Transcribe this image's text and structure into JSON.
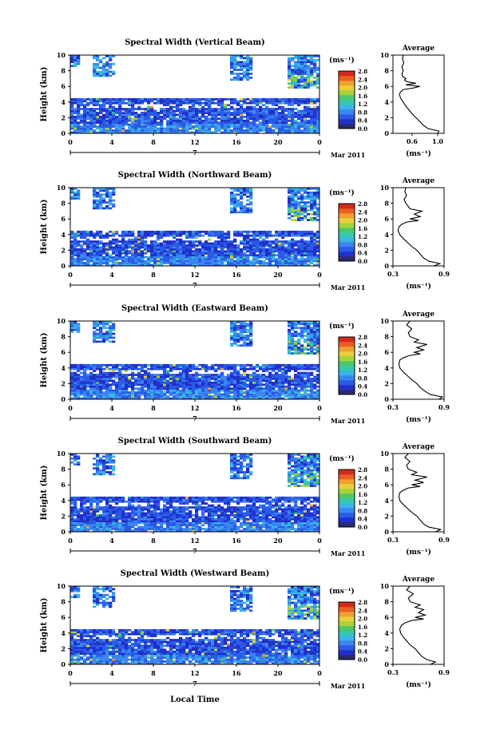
{
  "colorbar": {
    "unit": "(ms⁻¹)",
    "ticks": [
      "0.0",
      "0.4",
      "0.8",
      "1.2",
      "1.6",
      "2.0",
      "2.4",
      "2.8"
    ],
    "colors": [
      "#2a2a6e",
      "#2030c8",
      "#2a5ae6",
      "#3a86f0",
      "#3ab4e6",
      "#35c8b0",
      "#4cc86a",
      "#a6d23a",
      "#e8d03a",
      "#f0a030",
      "#ea6020",
      "#d42a1a"
    ]
  },
  "x_axis": {
    "ticks": [
      "0",
      "4",
      "8",
      "12",
      "16",
      "20",
      "0"
    ],
    "day": "7",
    "month_label": "Mar 2011",
    "xlabel": "Local Time"
  },
  "y_axis": {
    "label": "Height (km)",
    "ticks": [
      "0",
      "2",
      "4",
      "6",
      "8",
      "10"
    ]
  },
  "avg_title": "Average",
  "avg_unit": "(ms⁻¹)",
  "panels": [
    {
      "title": "Spectral Width (Vertical Beam)",
      "avg_xticks": [
        "0.6",
        "1.0"
      ],
      "avg_xlim": [
        0.3,
        1.1
      ],
      "avg_profile": {
        "height": [
          0,
          0.3,
          0.6,
          1,
          1.5,
          2,
          2.5,
          3,
          3.5,
          4,
          4.5,
          5,
          5.3,
          5.6,
          5.8,
          6,
          6.2,
          6.4,
          6.6,
          6.8,
          7,
          7.3,
          7.6,
          8,
          8.5,
          9,
          9.5,
          10
        ],
        "value": [
          1.0,
          1.02,
          0.85,
          0.78,
          0.72,
          0.66,
          0.6,
          0.55,
          0.5,
          0.46,
          0.42,
          0.4,
          0.42,
          0.46,
          0.62,
          0.72,
          0.5,
          0.66,
          0.52,
          0.48,
          0.5,
          0.45,
          0.44,
          0.46,
          0.44,
          0.47,
          0.45,
          0.46
        ]
      }
    },
    {
      "title": "Spectral Width (Northward Beam)",
      "avg_xticks": [
        "0.3",
        "0.9"
      ],
      "avg_xlim": [
        0.3,
        0.9
      ],
      "avg_profile": {
        "height": [
          0,
          0.3,
          0.6,
          1,
          1.5,
          2,
          2.5,
          3,
          3.5,
          4,
          4.5,
          5,
          5.3,
          5.6,
          5.8,
          6,
          6.3,
          6.6,
          7,
          7.3,
          7.6,
          8,
          8.5,
          9,
          9.5,
          10
        ],
        "value": [
          0.78,
          0.85,
          0.72,
          0.66,
          0.62,
          0.58,
          0.52,
          0.47,
          0.42,
          0.38,
          0.36,
          0.37,
          0.4,
          0.46,
          0.6,
          0.5,
          0.62,
          0.55,
          0.64,
          0.5,
          0.48,
          0.45,
          0.43,
          0.46,
          0.44,
          0.45
        ]
      }
    },
    {
      "title": "Spectral Width (Eastward Beam)",
      "avg_xticks": [
        "0.3",
        "0.9"
      ],
      "avg_xlim": [
        0.3,
        0.9
      ],
      "avg_profile": {
        "height": [
          0,
          0.3,
          0.6,
          1,
          1.5,
          2,
          2.5,
          3,
          3.5,
          4,
          4.5,
          5,
          5.3,
          5.6,
          5.8,
          6,
          6.3,
          6.6,
          7,
          7.3,
          7.6,
          8,
          8.5,
          9,
          9.5,
          10
        ],
        "value": [
          0.84,
          0.88,
          0.74,
          0.68,
          0.62,
          0.58,
          0.52,
          0.47,
          0.42,
          0.38,
          0.37,
          0.38,
          0.42,
          0.5,
          0.62,
          0.55,
          0.66,
          0.58,
          0.7,
          0.55,
          0.6,
          0.5,
          0.48,
          0.52,
          0.46,
          0.5
        ]
      }
    },
    {
      "title": "Spectral Width (Southward Beam)",
      "avg_xticks": [
        "0.3",
        "0.9"
      ],
      "avg_xlim": [
        0.3,
        0.9
      ],
      "avg_profile": {
        "height": [
          0,
          0.3,
          0.6,
          1,
          1.5,
          2,
          2.5,
          3,
          3.5,
          4,
          4.5,
          5,
          5.3,
          5.6,
          5.8,
          6,
          6.3,
          6.6,
          7,
          7.3,
          7.6,
          8,
          8.5,
          9,
          9.5,
          10
        ],
        "value": [
          0.8,
          0.86,
          0.72,
          0.66,
          0.62,
          0.58,
          0.52,
          0.47,
          0.42,
          0.38,
          0.37,
          0.38,
          0.42,
          0.48,
          0.62,
          0.52,
          0.66,
          0.56,
          0.7,
          0.52,
          0.58,
          0.48,
          0.46,
          0.5,
          0.44,
          0.48
        ]
      }
    },
    {
      "title": "Spectral Width (Westward Beam)",
      "avg_xticks": [
        "0.3",
        "0.9"
      ],
      "avg_xlim": [
        0.3,
        0.9
      ],
      "avg_profile": {
        "height": [
          0,
          0.3,
          0.6,
          1,
          1.5,
          2,
          2.5,
          3,
          3.5,
          4,
          4.5,
          5,
          5.3,
          5.6,
          5.8,
          6,
          6.3,
          6.6,
          7,
          7.3,
          7.6,
          8,
          8.5,
          9,
          9.5,
          10
        ],
        "value": [
          0.74,
          0.8,
          0.7,
          0.64,
          0.6,
          0.56,
          0.5,
          0.46,
          0.42,
          0.39,
          0.38,
          0.4,
          0.44,
          0.52,
          0.66,
          0.56,
          0.68,
          0.6,
          0.66,
          0.56,
          0.62,
          0.5,
          0.48,
          0.54,
          0.46,
          0.5
        ]
      }
    }
  ],
  "chart_data": [
    {
      "type": "heatmap",
      "title": "Spectral Width (Vertical Beam)",
      "xlabel": "",
      "ylabel": "Height (km)",
      "xlim": [
        0,
        24
      ],
      "ylim": [
        0,
        10
      ],
      "colorbar_range": [
        0.0,
        2.8
      ],
      "colorbar_label": "(ms⁻¹)",
      "x_ticks": [
        "0",
        "4",
        "8",
        "12",
        "16",
        "20",
        "0"
      ],
      "y_ticks": [
        "0",
        "2",
        "4",
        "6",
        "8",
        "10"
      ],
      "description_values": {
        "low_layer_km": [
          0,
          4.5
        ],
        "upper_cloud_km": [
          6,
          10
        ]
      }
    },
    {
      "type": "heatmap",
      "title": "Spectral Width (Northward Beam)",
      "xlabel": "",
      "ylabel": "Height (km)",
      "xlim": [
        0,
        24
      ],
      "ylim": [
        0,
        10
      ],
      "colorbar_range": [
        0.0,
        2.8
      ],
      "colorbar_label": "(ms⁻¹)",
      "x_ticks": [
        "0",
        "4",
        "8",
        "12",
        "16",
        "20",
        "0"
      ],
      "y_ticks": [
        "0",
        "2",
        "4",
        "6",
        "8",
        "10"
      ]
    },
    {
      "type": "heatmap",
      "title": "Spectral Width (Eastward Beam)",
      "xlabel": "",
      "ylabel": "Height (km)",
      "xlim": [
        0,
        24
      ],
      "ylim": [
        0,
        10
      ],
      "colorbar_range": [
        0.0,
        2.8
      ],
      "colorbar_label": "(ms⁻¹)",
      "x_ticks": [
        "0",
        "4",
        "8",
        "12",
        "16",
        "20",
        "0"
      ],
      "y_ticks": [
        "0",
        "2",
        "4",
        "6",
        "8",
        "10"
      ]
    },
    {
      "type": "heatmap",
      "title": "Spectral Width (Southward Beam)",
      "xlabel": "",
      "ylabel": "Height (km)",
      "xlim": [
        0,
        24
      ],
      "ylim": [
        0,
        10
      ],
      "colorbar_range": [
        0.0,
        2.8
      ],
      "colorbar_label": "(ms⁻¹)",
      "x_ticks": [
        "0",
        "4",
        "8",
        "12",
        "16",
        "20",
        "0"
      ],
      "y_ticks": [
        "0",
        "2",
        "4",
        "6",
        "8",
        "10"
      ]
    },
    {
      "type": "heatmap",
      "title": "Spectral Width (Westward Beam)",
      "xlabel": "Local Time",
      "ylabel": "Height (km)",
      "xlim": [
        0,
        24
      ],
      "ylim": [
        0,
        10
      ],
      "colorbar_range": [
        0.0,
        2.8
      ],
      "colorbar_label": "(ms⁻¹)",
      "x_ticks": [
        "0",
        "4",
        "8",
        "12",
        "16",
        "20",
        "0"
      ],
      "y_ticks": [
        "0",
        "2",
        "4",
        "6",
        "8",
        "10"
      ]
    },
    {
      "type": "line",
      "title": "Average",
      "xlabel": "(ms⁻¹)",
      "ylabel": "Height (km)",
      "xlim": [
        0.3,
        1.1
      ],
      "ylim": [
        0,
        10
      ],
      "series": [
        {
          "x": [
            1.0,
            0.85,
            0.72,
            0.6,
            0.5,
            0.42,
            0.4,
            0.46,
            0.72,
            0.5,
            0.66,
            0.48,
            0.45,
            0.46,
            0.45,
            0.46
          ],
          "y": [
            0,
            0.6,
            1.5,
            2.5,
            3.5,
            4.5,
            5,
            5.6,
            6,
            6.2,
            6.4,
            6.8,
            7.6,
            8.5,
            9.5,
            10
          ]
        }
      ]
    },
    {
      "type": "line",
      "title": "Average",
      "xlabel": "(ms⁻¹)",
      "ylabel": "Height (km)",
      "xlim": [
        0.3,
        0.9
      ],
      "ylim": [
        0,
        10
      ],
      "series": [
        {
          "x": [
            0.78,
            0.72,
            0.62,
            0.52,
            0.42,
            0.36,
            0.37,
            0.46,
            0.6,
            0.62,
            0.64,
            0.48,
            0.43,
            0.45
          ],
          "y": [
            0,
            0.6,
            1.5,
            2.5,
            3.5,
            4.5,
            5,
            5.6,
            5.8,
            6.3,
            7,
            7.6,
            8.5,
            10
          ]
        }
      ]
    },
    {
      "type": "line",
      "title": "Average",
      "xlabel": "(ms⁻¹)",
      "ylabel": "Height (km)",
      "xlim": [
        0.3,
        0.9
      ],
      "ylim": [
        0,
        10
      ],
      "series": [
        {
          "x": [
            0.84,
            0.74,
            0.62,
            0.52,
            0.42,
            0.37,
            0.38,
            0.5,
            0.62,
            0.66,
            0.7,
            0.6,
            0.48,
            0.5
          ],
          "y": [
            0,
            0.6,
            1.5,
            2.5,
            3.5,
            4.5,
            5,
            5.6,
            5.8,
            6.3,
            7,
            7.6,
            8.5,
            10
          ]
        }
      ]
    },
    {
      "type": "line",
      "title": "Average",
      "xlabel": "(ms⁻¹)",
      "ylabel": "Height (km)",
      "xlim": [
        0.3,
        0.9
      ],
      "ylim": [
        0,
        10
      ],
      "series": [
        {
          "x": [
            0.8,
            0.72,
            0.62,
            0.52,
            0.42,
            0.37,
            0.38,
            0.48,
            0.62,
            0.66,
            0.7,
            0.58,
            0.46,
            0.48
          ],
          "y": [
            0,
            0.6,
            1.5,
            2.5,
            3.5,
            4.5,
            5,
            5.6,
            5.8,
            6.3,
            7,
            7.6,
            8.5,
            10
          ]
        }
      ]
    },
    {
      "type": "line",
      "title": "Average",
      "xlabel": "(ms⁻¹)",
      "ylabel": "Height (km)",
      "xlim": [
        0.3,
        0.9
      ],
      "ylim": [
        0,
        10
      ],
      "series": [
        {
          "x": [
            0.74,
            0.7,
            0.6,
            0.5,
            0.42,
            0.38,
            0.4,
            0.52,
            0.66,
            0.68,
            0.66,
            0.62,
            0.48,
            0.5
          ],
          "y": [
            0,
            0.6,
            1.5,
            2.5,
            3.5,
            4.5,
            5,
            5.6,
            5.8,
            6.3,
            7,
            7.6,
            8.5,
            10
          ]
        }
      ]
    }
  ]
}
